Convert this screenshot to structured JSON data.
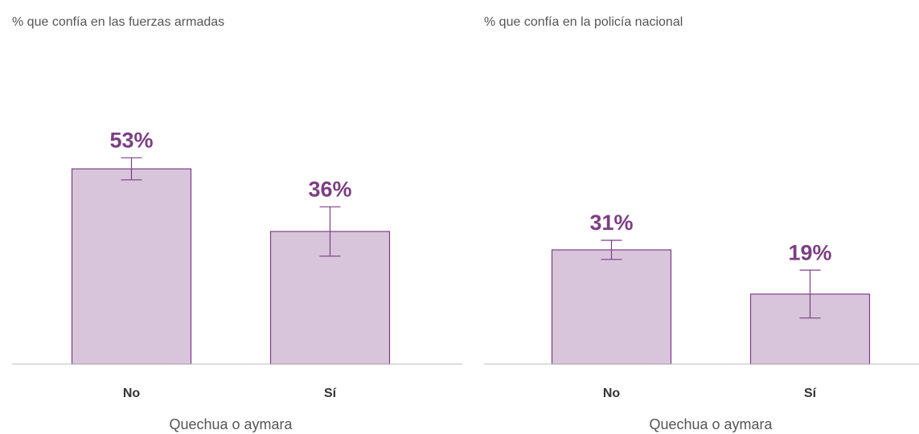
{
  "chart_data": [
    {
      "type": "bar",
      "title": "% que confía en las fuerzas armadas",
      "xlabel": "Quechua o aymara",
      "categories": [
        "No",
        "Sí"
      ],
      "values": [
        53,
        36
      ],
      "value_labels": [
        "53%",
        "36%"
      ],
      "errors": [
        3,
        6.7
      ],
      "color": "#d8c5db",
      "edge_color": "#7b3f83",
      "ylim": [
        0,
        60
      ]
    },
    {
      "type": "bar",
      "title": "% que confía en la policía nacional",
      "xlabel": "Quechua o aymara",
      "categories": [
        "No",
        "Sí"
      ],
      "values": [
        31,
        19
      ],
      "value_labels": [
        "31%",
        "19%"
      ],
      "errors": [
        2.6,
        6.5
      ],
      "color": "#d8c5db",
      "edge_color": "#7b3f83",
      "ylim": [
        0,
        60
      ]
    }
  ]
}
